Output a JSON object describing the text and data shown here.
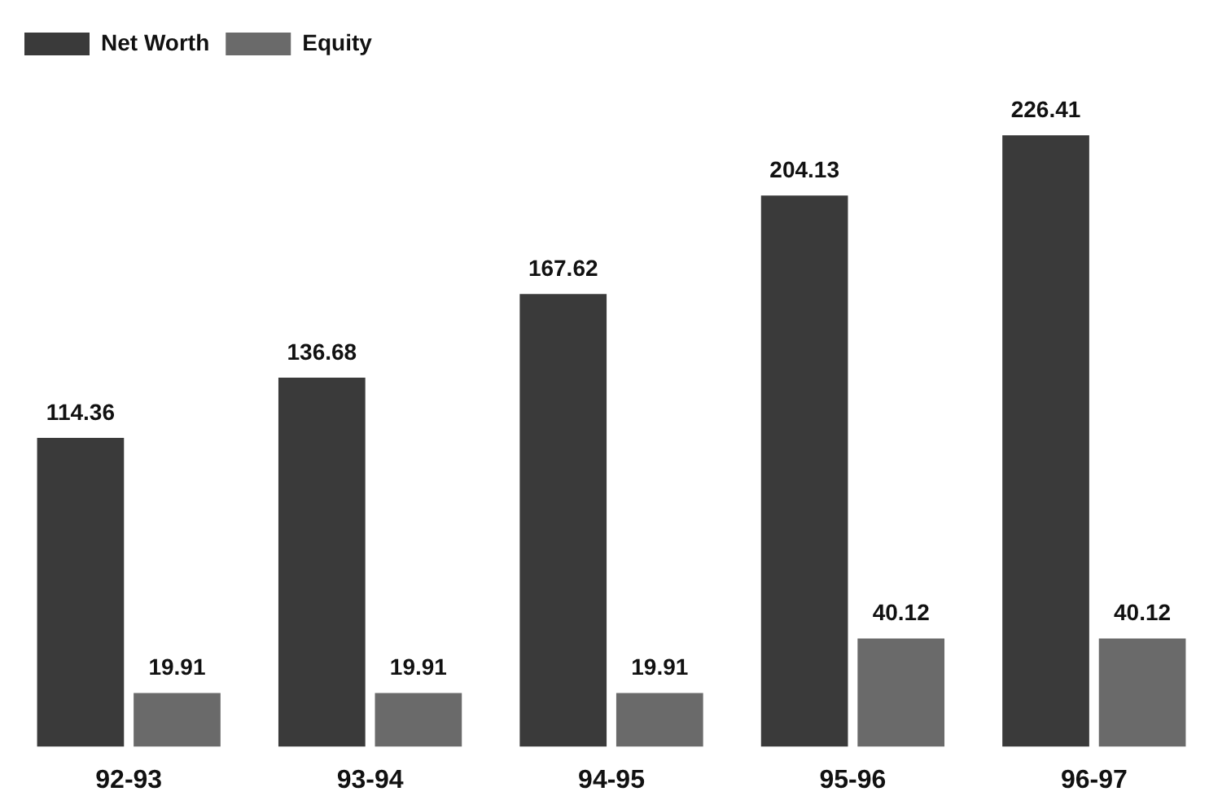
{
  "chart_data": {
    "type": "bar",
    "categories": [
      "92-93",
      "93-94",
      "94-95",
      "95-96",
      "96-97"
    ],
    "series": [
      {
        "name": "Net Worth",
        "color": "#3a3a3a",
        "values": [
          114.36,
          136.68,
          167.62,
          204.13,
          226.41
        ]
      },
      {
        "name": "Equity",
        "color": "#6a6a6a",
        "values": [
          19.91,
          19.91,
          19.91,
          40.12,
          40.12
        ]
      }
    ],
    "data_labels": true,
    "legend": "top left",
    "grid": false
  }
}
